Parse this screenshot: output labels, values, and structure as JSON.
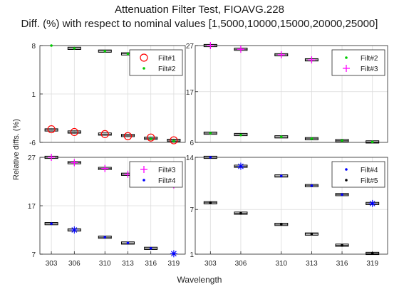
{
  "figure": {
    "title_line1": "Attenuation Filter Test, FIOAVG.228",
    "title_line2": "Diff. (%) with respect to nominal values [1,5000,10000,15000,20000,25000]",
    "xlabel": "Wavelength",
    "ylabel": "Relative diffs. (%)"
  },
  "colors": {
    "Filt#1": "#ff0000",
    "Filt#2": "#00cc00",
    "Filt#3": "#ff00ff",
    "Filt#4": "#0000ff",
    "Filt#5": "#000000",
    "axis": "#262626",
    "grid": "#dcdcdc",
    "box": "#000000"
  },
  "chart_data": [
    {
      "type": "scatter",
      "panel": "top-left",
      "x": [
        303,
        306,
        310,
        313,
        316,
        319
      ],
      "xticks": [
        "303",
        "306",
        "310",
        "313",
        "316",
        "319"
      ],
      "ylim": [
        -6,
        8
      ],
      "yticks": [
        -6,
        1,
        8
      ],
      "grid": true,
      "legend": "top-right",
      "series": [
        {
          "name": "Filt#1",
          "marker": "circle",
          "values": [
            -4.1,
            -4.5,
            -4.8,
            -5.1,
            -5.3,
            -5.7
          ]
        },
        {
          "name": "Filt#2",
          "marker": "dot",
          "values": [
            8.0,
            7.6,
            7.2,
            6.8,
            -5.5,
            -5.8
          ]
        }
      ],
      "boxes": [
        {
          "x": 303,
          "y": -4.2
        },
        {
          "x": 306,
          "y": -4.5
        },
        {
          "x": 310,
          "y": -4.8
        },
        {
          "x": 313,
          "y": -5.0
        },
        {
          "x": 316,
          "y": -5.4
        },
        {
          "x": 319,
          "y": -5.7
        },
        {
          "x": 306,
          "y": 7.6
        },
        {
          "x": 310,
          "y": 7.2
        },
        {
          "x": 313,
          "y": 6.8
        }
      ]
    },
    {
      "type": "scatter",
      "panel": "top-right",
      "x": [
        303,
        306,
        310,
        313,
        316,
        319
      ],
      "xticks": [
        "303",
        "306",
        "310",
        "313",
        "316",
        "319"
      ],
      "ylim": [
        6,
        27
      ],
      "yticks": [
        6,
        17,
        27
      ],
      "grid": true,
      "legend": "top-right",
      "series": [
        {
          "name": "Filt#2",
          "marker": "dot",
          "values": [
            8.0,
            7.6,
            7.2,
            6.8,
            6.4,
            6.1
          ]
        },
        {
          "name": "Filt#3",
          "marker": "plus",
          "values": [
            27.0,
            26.2,
            25.0,
            23.9,
            22.8,
            21.8
          ]
        }
      ],
      "boxes": [
        {
          "x": 303,
          "y": 8.0
        },
        {
          "x": 306,
          "y": 7.7
        },
        {
          "x": 310,
          "y": 7.2
        },
        {
          "x": 313,
          "y": 6.8
        },
        {
          "x": 316,
          "y": 6.4
        },
        {
          "x": 319,
          "y": 6.1
        },
        {
          "x": 303,
          "y": 27.0
        },
        {
          "x": 306,
          "y": 26.2
        },
        {
          "x": 310,
          "y": 25.0
        },
        {
          "x": 313,
          "y": 23.9
        }
      ]
    },
    {
      "type": "scatter",
      "panel": "bottom-left",
      "x": [
        303,
        306,
        310,
        313,
        316,
        319
      ],
      "xticks": [
        "303",
        "306",
        "310",
        "313",
        "316",
        "319"
      ],
      "ylim": [
        7,
        27
      ],
      "yticks": [
        7,
        17,
        27
      ],
      "grid": true,
      "legend": "top-right",
      "series": [
        {
          "name": "Filt#3",
          "marker": "plus",
          "values": [
            27.0,
            25.9,
            24.7,
            23.5,
            22.4,
            21.3
          ]
        },
        {
          "name": "Filt#4",
          "marker": "dot",
          "values": [
            13.3,
            12.0,
            10.5,
            9.3,
            8.2,
            7.1
          ]
        }
      ],
      "boxes": [
        {
          "x": 303,
          "y": 27.0
        },
        {
          "x": 306,
          "y": 25.9
        },
        {
          "x": 310,
          "y": 24.7
        },
        {
          "x": 313,
          "y": 23.5
        },
        {
          "x": 303,
          "y": 13.3
        },
        {
          "x": 306,
          "y": 12.0
        },
        {
          "x": 310,
          "y": 10.5
        },
        {
          "x": 313,
          "y": 9.3
        },
        {
          "x": 316,
          "y": 8.2
        }
      ],
      "stars": [
        {
          "x": 306,
          "y": 12.0
        },
        {
          "x": 319,
          "y": 7.1
        }
      ]
    },
    {
      "type": "scatter",
      "panel": "bottom-right",
      "x": [
        303,
        306,
        310,
        313,
        316,
        319
      ],
      "xticks": [
        "303",
        "306",
        "310",
        "313",
        "316",
        "319"
      ],
      "ylim": [
        1,
        14
      ],
      "yticks": [
        1,
        7,
        14
      ],
      "grid": true,
      "legend": "top-right",
      "series": [
        {
          "name": "Filt#4",
          "marker": "dot",
          "values": [
            14.0,
            12.8,
            11.5,
            10.2,
            9.0,
            7.8
          ]
        },
        {
          "name": "Filt#5",
          "marker": "dot",
          "values": [
            7.9,
            6.5,
            5.0,
            3.7,
            2.2,
            1.1
          ]
        }
      ],
      "boxes": [
        {
          "x": 303,
          "y": 14.0
        },
        {
          "x": 306,
          "y": 12.8
        },
        {
          "x": 310,
          "y": 11.5
        },
        {
          "x": 313,
          "y": 10.2
        },
        {
          "x": 316,
          "y": 9.0
        },
        {
          "x": 319,
          "y": 7.8
        },
        {
          "x": 303,
          "y": 7.9
        },
        {
          "x": 306,
          "y": 6.5
        },
        {
          "x": 310,
          "y": 5.0
        },
        {
          "x": 313,
          "y": 3.7
        },
        {
          "x": 316,
          "y": 2.2
        },
        {
          "x": 319,
          "y": 1.1
        }
      ],
      "stars": [
        {
          "x": 306,
          "y": 12.8
        },
        {
          "x": 319,
          "y": 7.8
        }
      ]
    }
  ]
}
